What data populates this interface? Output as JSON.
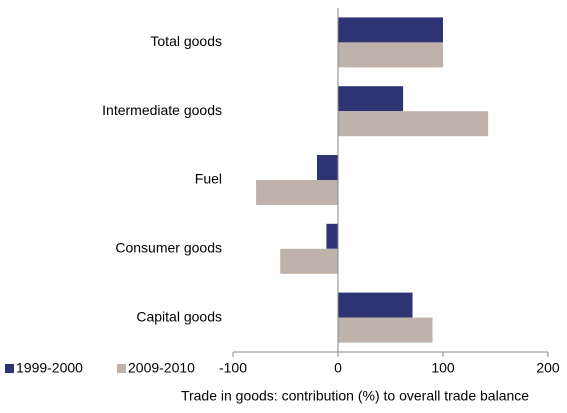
{
  "chart_data": {
    "type": "hbar",
    "categories": [
      "Total goods",
      "Intermediate goods",
      "Fuel",
      "Consumer goods",
      "Capital goods"
    ],
    "series": [
      {
        "name": "1999-2000",
        "color": "#2e3374",
        "values": [
          100,
          62,
          -20,
          -11,
          71
        ]
      },
      {
        "name": "2009-2010",
        "color": "#bfb2aa",
        "values": [
          100,
          143,
          -78,
          -55,
          90
        ]
      }
    ],
    "xlim": [
      -100,
      200
    ],
    "xticks": [
      -100,
      0,
      100,
      200
    ],
    "xlabel": "Trade in goods: contribution (%) to overall trade balance",
    "legend": "bottom-left"
  }
}
